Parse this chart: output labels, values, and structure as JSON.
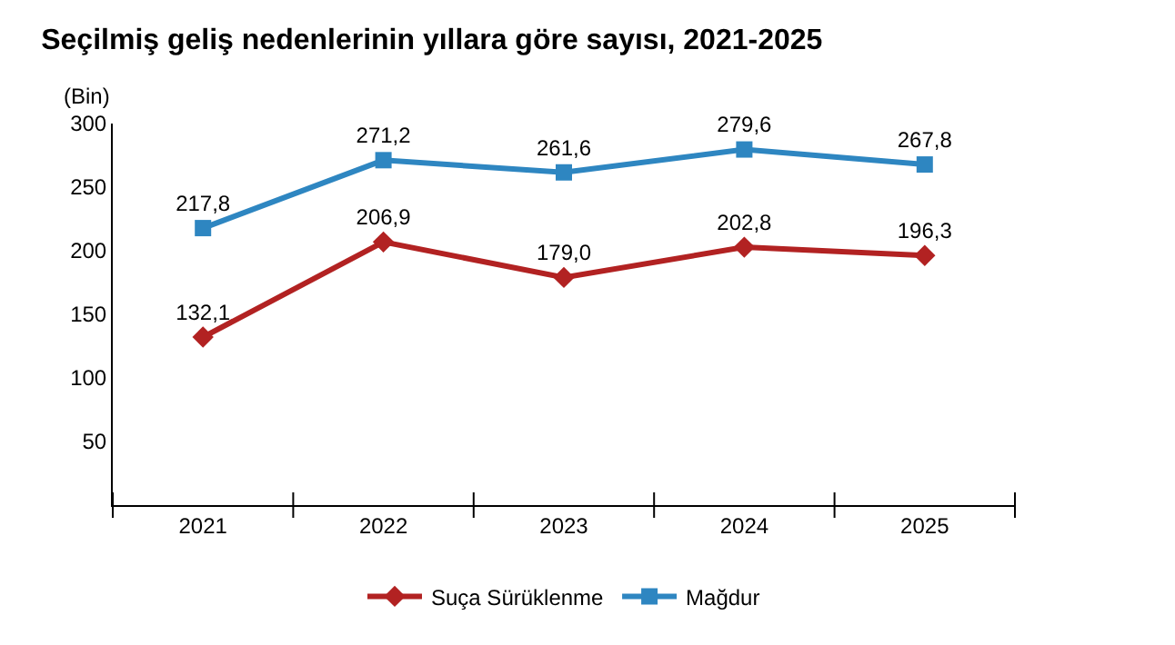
{
  "chart_data": {
    "type": "line",
    "title": "Seçilmiş geliş nedenlerinin yıllara göre sayısı, 2021-2025",
    "ylabel": "(Bin)",
    "categories": [
      "2021",
      "2022",
      "2023",
      "2024",
      "2025"
    ],
    "series": [
      {
        "name": "Suça Sürüklenme",
        "color": "#b22222",
        "marker": "diamond",
        "values": [
          132.1,
          206.9,
          179.0,
          202.8,
          196.3
        ],
        "value_labels": [
          "132,1",
          "206,9",
          "179,0",
          "202,8",
          "196,3"
        ]
      },
      {
        "name": "Mağdur",
        "color": "#2e86c1",
        "marker": "square",
        "values": [
          217.8,
          271.2,
          261.6,
          279.6,
          267.8
        ],
        "value_labels": [
          "217,8",
          "271,2",
          "261,6",
          "279,6",
          "267,8"
        ]
      }
    ],
    "ylim": [
      0,
      300
    ],
    "yticks": [
      50,
      100,
      150,
      200,
      250,
      300
    ],
    "legend": "bottom",
    "line_style": "solid"
  }
}
